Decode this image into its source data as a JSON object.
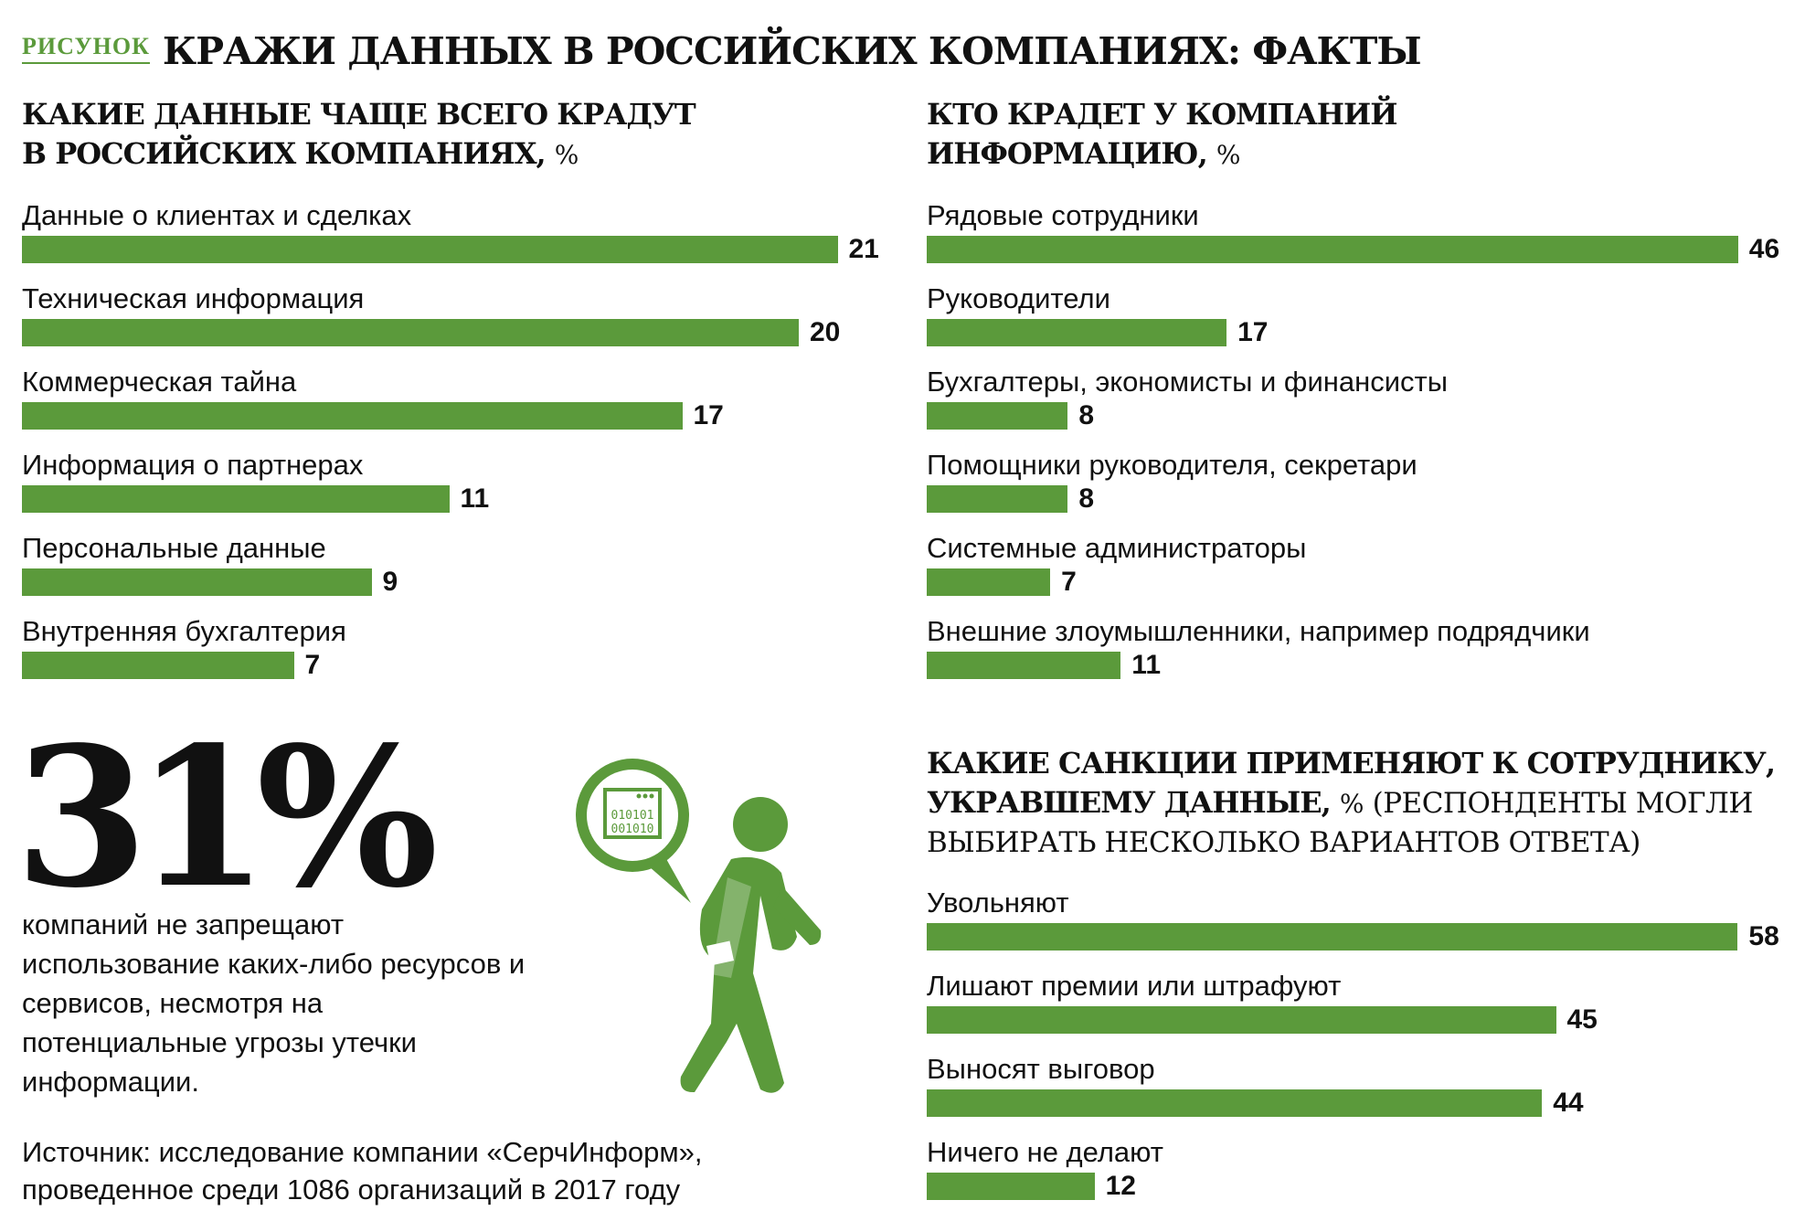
{
  "header": {
    "kicker": "РИСУНОК",
    "title": "КРАЖИ ДАННЫХ В РОССИЙСКИХ КОМПАНИЯХ: ФАКТЫ"
  },
  "colors": {
    "accent": "#5b9a3b",
    "text": "#111111"
  },
  "stat": {
    "value": "31%",
    "text": "компаний не запрещают использование каких-либо ресурсов и сервисов, несмотря на потенциальные угрозы утечки информации."
  },
  "source": {
    "line1": "Источник: исследование компании «СерчИнформ»,",
    "line2": "проведенное среди 1086 организаций в 2017 году"
  },
  "illustration": {
    "icon": "walking-man-with-binary-data-bubble-icon",
    "code_line1": "010101",
    "code_line2": "001010"
  },
  "chart_data": [
    {
      "type": "bar",
      "title_line1": "КАКИЕ ДАННЫЕ ЧАЩЕ ВСЕГО КРАДУТ",
      "title_line2": "В РОССИЙСКИХ КОМПАНИЯХ,",
      "unit": "%",
      "categories": [
        "Данные о клиентах и сделках",
        "Техническая информация",
        "Коммерческая тайна",
        "Информация о партнерах",
        "Персональные данные",
        "Внутренняя бухгалтерия"
      ],
      "values": [
        21,
        20,
        17,
        11,
        9,
        7
      ],
      "orientation": "horizontal",
      "grid": false
    },
    {
      "type": "bar",
      "title_line1": "КТО КРАДЕТ У КОМПАНИЙ",
      "title_line2": "ИНФОРМАЦИЮ,",
      "unit": "%",
      "categories": [
        "Рядовые сотрудники",
        "Руководители",
        "Бухгалтеры, экономисты и финансисты",
        "Помощники руководителя, секретари",
        "Системные администраторы",
        "Внешние злоумышленники, например подрядчики"
      ],
      "values": [
        46,
        17,
        8,
        8,
        7,
        11
      ],
      "orientation": "horizontal",
      "grid": false
    },
    {
      "type": "bar",
      "title_line1": "КАКИЕ САНКЦИИ ПРИМЕНЯЮТ К СОТРУДНИКУ,",
      "title_line2": "УКРАВШЕМУ ДАННЫЕ,",
      "unit": "%",
      "note": "(РЕСПОНДЕНТЫ МОГЛИ",
      "title_line3": "ВЫБИРАТЬ НЕСКОЛЬКО ВАРИАНТОВ ОТВЕТА)",
      "categories": [
        "Увольняют",
        "Лишают премии или штрафуют",
        "Выносят выговор",
        "Ничего не делают"
      ],
      "values": [
        58,
        45,
        44,
        12
      ],
      "orientation": "horizontal",
      "grid": false
    }
  ]
}
